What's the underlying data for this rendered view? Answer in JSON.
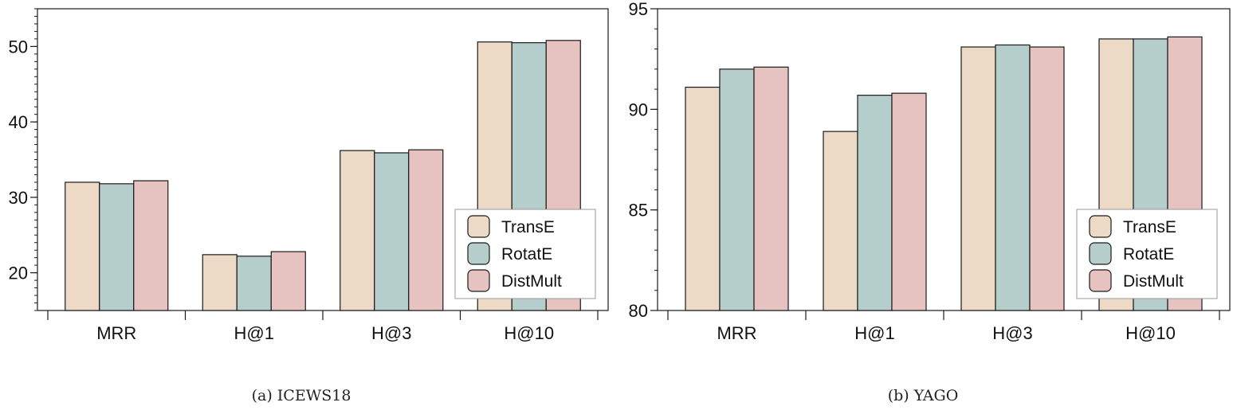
{
  "colors": {
    "TransE": "#ecd9c6",
    "RotatE": "#b6cecb",
    "DistMult": "#e6c3c1",
    "stroke": "#1a1a1a"
  },
  "chart_data": [
    {
      "type": "bar",
      "caption": "(a) ICEWS18",
      "categories": [
        "MRR",
        "H@1",
        "H@3",
        "H@10"
      ],
      "series": [
        {
          "name": "TransE",
          "values": [
            32.0,
            22.4,
            36.2,
            50.6
          ]
        },
        {
          "name": "RotatE",
          "values": [
            31.8,
            22.2,
            35.9,
            50.5
          ]
        },
        {
          "name": "DistMult",
          "values": [
            32.2,
            22.8,
            36.3,
            50.8
          ]
        }
      ],
      "ylim": [
        15,
        55
      ],
      "yticks": [
        20,
        30,
        40,
        50
      ],
      "ytick_labels": [
        "20",
        "30",
        "40",
        "50"
      ],
      "legend": "bottom-right"
    },
    {
      "type": "bar",
      "caption": "(b) YAGO",
      "categories": [
        "MRR",
        "H@1",
        "H@3",
        "H@10"
      ],
      "series": [
        {
          "name": "TransE",
          "values": [
            91.1,
            88.9,
            93.1,
            93.5
          ]
        },
        {
          "name": "RotatE",
          "values": [
            92.0,
            90.7,
            93.2,
            93.5
          ]
        },
        {
          "name": "DistMult",
          "values": [
            92.1,
            90.8,
            93.1,
            93.6
          ]
        }
      ],
      "ylim": [
        80,
        95
      ],
      "yticks": [
        80,
        85,
        90,
        95
      ],
      "ytick_labels": [
        "80",
        "85",
        "90",
        "95"
      ],
      "legend": "bottom-right"
    }
  ]
}
